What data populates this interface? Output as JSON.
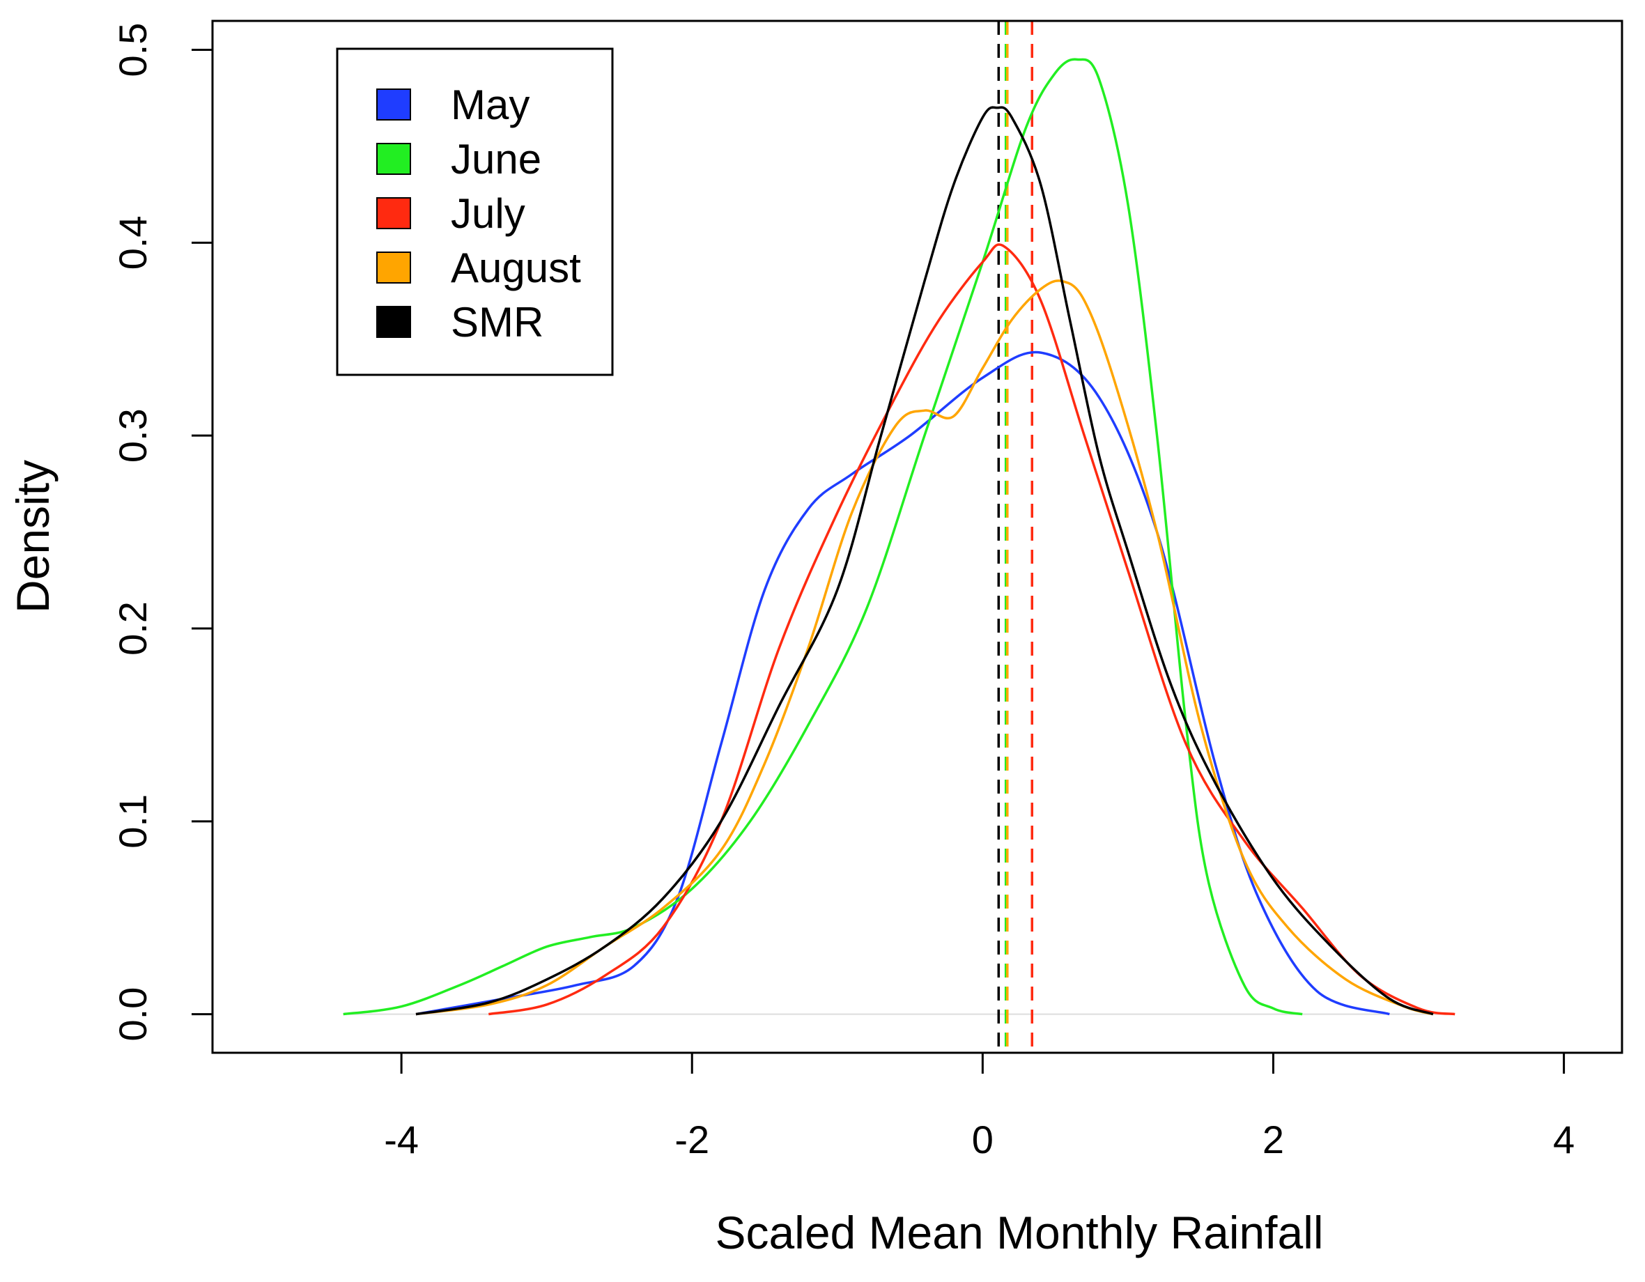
{
  "chart_data": {
    "type": "line",
    "title": "",
    "xlabel": "Scaled Mean Monthly Rainfall",
    "ylabel": "Density",
    "xlim": [
      -5.3,
      4.4
    ],
    "ylim": [
      -0.02,
      0.515
    ],
    "xticks": [
      -4,
      -2,
      0,
      2,
      4
    ],
    "xtick_labels": [
      "-4",
      "-2",
      "0",
      "2",
      "4"
    ],
    "yticks": [
      0.0,
      0.1,
      0.2,
      0.3,
      0.4,
      0.5
    ],
    "ytick_labels": [
      "0.0",
      "0.1",
      "0.2",
      "0.3",
      "0.4",
      "0.5"
    ],
    "legend_position": "top-left",
    "legend": [
      {
        "label": "May",
        "color": "#1f3dff"
      },
      {
        "label": "June",
        "color": "#22ee22"
      },
      {
        "label": "July",
        "color": "#ff2a10"
      },
      {
        "label": "August",
        "color": "#ffa500"
      },
      {
        "label": "SMR",
        "color": "#000000"
      }
    ],
    "series": [
      {
        "name": "May",
        "color": "#1f3dff",
        "x": [
          -3.9,
          -3.3,
          -2.8,
          -2.4,
          -2.1,
          -1.8,
          -1.5,
          -1.2,
          -0.9,
          -0.5,
          0,
          0.4,
          0.8,
          1.2,
          1.6,
          1.9,
          2.3,
          2.8
        ],
        "y": [
          0,
          0.008,
          0.015,
          0.025,
          0.06,
          0.14,
          0.22,
          0.262,
          0.28,
          0.3,
          0.33,
          0.343,
          0.32,
          0.25,
          0.13,
          0.06,
          0.012,
          0
        ]
      },
      {
        "name": "June",
        "color": "#22ee22",
        "x": [
          -4.4,
          -4.0,
          -3.6,
          -3.3,
          -3.0,
          -2.7,
          -2.4,
          -2.0,
          -1.6,
          -1.2,
          -0.8,
          -0.4,
          0,
          0.3,
          0.5,
          0.65,
          0.8,
          1.0,
          1.2,
          1.4,
          1.55,
          1.8,
          2.0,
          2.2
        ],
        "y": [
          0,
          0.004,
          0.015,
          0.025,
          0.035,
          0.04,
          0.045,
          0.065,
          0.1,
          0.15,
          0.21,
          0.3,
          0.39,
          0.46,
          0.488,
          0.495,
          0.485,
          0.42,
          0.3,
          0.15,
          0.07,
          0.015,
          0.003,
          0
        ]
      },
      {
        "name": "July",
        "color": "#ff2a10",
        "x": [
          -3.4,
          -3.0,
          -2.6,
          -2.2,
          -1.8,
          -1.4,
          -1.0,
          -0.6,
          -0.3,
          0,
          0.15,
          0.4,
          0.7,
          1.0,
          1.4,
          1.8,
          2.2,
          2.6,
          3.0,
          3.25
        ],
        "y": [
          0,
          0.005,
          0.02,
          0.045,
          0.1,
          0.19,
          0.26,
          0.32,
          0.36,
          0.39,
          0.398,
          0.37,
          0.3,
          0.23,
          0.14,
          0.09,
          0.055,
          0.02,
          0.003,
          0
        ]
      },
      {
        "name": "August",
        "color": "#ffa500",
        "x": [
          -3.9,
          -3.4,
          -3.0,
          -2.6,
          -2.2,
          -1.8,
          -1.5,
          -1.2,
          -0.9,
          -0.6,
          -0.4,
          -0.2,
          0,
          0.2,
          0.4,
          0.55,
          0.7,
          0.9,
          1.2,
          1.5,
          1.8,
          2.1,
          2.5,
          2.9,
          3.1
        ],
        "y": [
          0,
          0.005,
          0.015,
          0.035,
          0.055,
          0.085,
          0.13,
          0.19,
          0.26,
          0.305,
          0.313,
          0.31,
          0.335,
          0.36,
          0.376,
          0.38,
          0.37,
          0.33,
          0.25,
          0.15,
          0.08,
          0.045,
          0.018,
          0.004,
          0
        ]
      },
      {
        "name": "SMR",
        "color": "#000000",
        "x": [
          -3.9,
          -3.4,
          -3.0,
          -2.6,
          -2.2,
          -1.8,
          -1.4,
          -1.0,
          -0.7,
          -0.4,
          -0.2,
          0,
          0.1,
          0.2,
          0.4,
          0.6,
          0.8,
          1.0,
          1.3,
          1.6,
          2.0,
          2.4,
          2.8,
          3.1
        ],
        "y": [
          0,
          0.006,
          0.018,
          0.035,
          0.06,
          0.1,
          0.16,
          0.22,
          0.3,
          0.38,
          0.43,
          0.465,
          0.47,
          0.465,
          0.43,
          0.36,
          0.29,
          0.24,
          0.17,
          0.12,
          0.07,
          0.035,
          0.008,
          0
        ]
      }
    ],
    "mean_lines": [
      {
        "name": "May",
        "x": 0.16,
        "color": "#1f3dff"
      },
      {
        "name": "June",
        "x": 0.16,
        "color": "#22ee22"
      },
      {
        "name": "July",
        "x": 0.34,
        "color": "#ff2a10"
      },
      {
        "name": "August",
        "x": 0.17,
        "color": "#ffa500"
      },
      {
        "name": "SMR",
        "x": 0.11,
        "color": "#000000"
      }
    ]
  }
}
